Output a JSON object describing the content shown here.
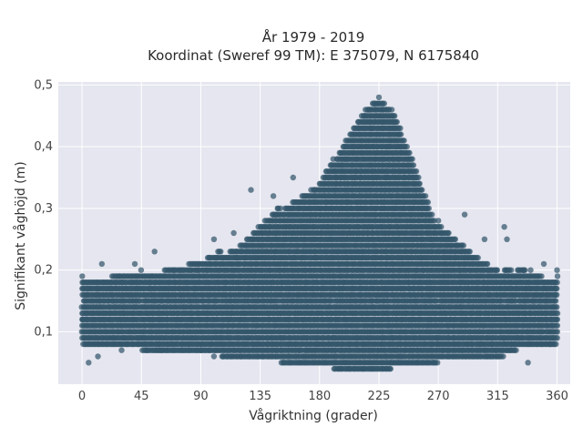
{
  "chart_data": {
    "type": "scatter",
    "title_line1": "År 1979 - 2019",
    "title_line2": "Koordinat (Sweref 99 TM): E 375079, N 6175840",
    "xlabel": "Vågriktning (grader)",
    "ylabel": "Signifikant våghöjd (m)",
    "xlim": [
      -18,
      370
    ],
    "ylim": [
      0.015,
      0.505
    ],
    "x_ticks": [
      0,
      45,
      90,
      135,
      180,
      225,
      270,
      315,
      360
    ],
    "x_tick_labels": [
      "0",
      "45",
      "90",
      "135",
      "180",
      "225",
      "270",
      "315",
      "360"
    ],
    "y_ticks": [
      0.1,
      0.2,
      0.3,
      0.4,
      0.5
    ],
    "y_tick_labels": [
      "0,1",
      "0,2",
      "0,3",
      "0,4",
      "0,5"
    ],
    "grid": true,
    "marker_color": "#33566b",
    "plot_background": "#e5e6ef",
    "envelope": {
      "direction_deg": [
        0,
        45,
        90,
        120,
        150,
        180,
        200,
        215,
        225,
        235,
        250,
        270,
        300,
        315,
        330,
        360
      ],
      "upper_hs_m": [
        0.185,
        0.195,
        0.215,
        0.24,
        0.3,
        0.34,
        0.41,
        0.46,
        0.48,
        0.46,
        0.38,
        0.27,
        0.22,
        0.2,
        0.2,
        0.185
      ],
      "lower_hs_m": [
        0.085,
        0.075,
        0.07,
        0.06,
        0.055,
        0.05,
        0.04,
        0.04,
        0.04,
        0.045,
        0.05,
        0.055,
        0.06,
        0.06,
        0.075,
        0.085
      ]
    },
    "scattered_points": [
      {
        "x": 5,
        "y": 0.05
      },
      {
        "x": 12,
        "y": 0.06
      },
      {
        "x": 30,
        "y": 0.07
      },
      {
        "x": 60,
        "y": 0.07
      },
      {
        "x": 90,
        "y": 0.07
      },
      {
        "x": 100,
        "y": 0.06
      },
      {
        "x": 128,
        "y": 0.33
      },
      {
        "x": 145,
        "y": 0.32
      },
      {
        "x": 160,
        "y": 0.35
      },
      {
        "x": 290,
        "y": 0.29
      },
      {
        "x": 320,
        "y": 0.27
      },
      {
        "x": 322,
        "y": 0.25
      },
      {
        "x": 338,
        "y": 0.05
      },
      {
        "x": 355,
        "y": 0.08
      },
      {
        "x": 360,
        "y": 0.2
      },
      {
        "x": 15,
        "y": 0.21
      },
      {
        "x": 40,
        "y": 0.21
      },
      {
        "x": 55,
        "y": 0.23
      },
      {
        "x": 100,
        "y": 0.25
      },
      {
        "x": 115,
        "y": 0.26
      },
      {
        "x": 270,
        "y": 0.28
      },
      {
        "x": 305,
        "y": 0.25
      },
      {
        "x": 340,
        "y": 0.2
      },
      {
        "x": 350,
        "y": 0.21
      }
    ]
  }
}
